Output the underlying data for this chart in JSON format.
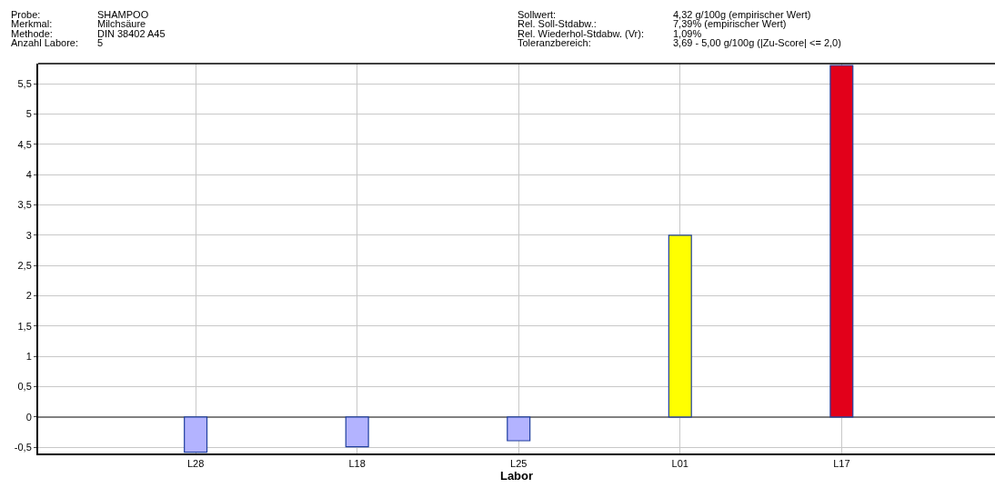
{
  "chart_data": {
    "type": "bar",
    "xlabel": "Labor",
    "annotations": [
      "Probe:",
      "SHAMPOO",
      "Merkmal:",
      "Milchsäure",
      "Methode:",
      "DIN 38402 A45",
      "Anzahl Labore:",
      "5",
      "Sollwert:",
      "4,32 g/100g (empirischer Wert)",
      "Rel. Soll-Stdabw.:",
      "7,39% (empirischer Wert)",
      "Rel. Wiederhol-Stdabw. (Vr):",
      "1,09%",
      "Toleranzbereich:",
      "3,69 - 5,00 g/100g (|Zu-Score| <= 2,0)"
    ],
    "categories": [
      "L28",
      "L18",
      "L25",
      "L01",
      "L17"
    ],
    "values": [
      -0.58,
      -0.49,
      -0.39,
      3.0,
      5.8
    ],
    "colors": [
      "#b3b3ff",
      "#b3b3ff",
      "#b3b3ff",
      "#ffff00",
      "#e2001a"
    ],
    "ylim": [
      -0.6,
      5.83
    ],
    "yticks": [
      {
        "value": -0.5,
        "label": "-0,5"
      },
      0,
      {
        "value": 0.5,
        "label": "0,5"
      },
      1,
      {
        "value": 1.5,
        "label": "1,5"
      },
      2,
      {
        "value": 2.5,
        "label": "2,5"
      },
      3,
      {
        "value": 3.5,
        "label": "3,5"
      },
      4,
      {
        "value": 4.5,
        "label": "4,5"
      },
      5,
      {
        "value": 5.5,
        "label": "5,5"
      }
    ],
    "grid": true
  }
}
